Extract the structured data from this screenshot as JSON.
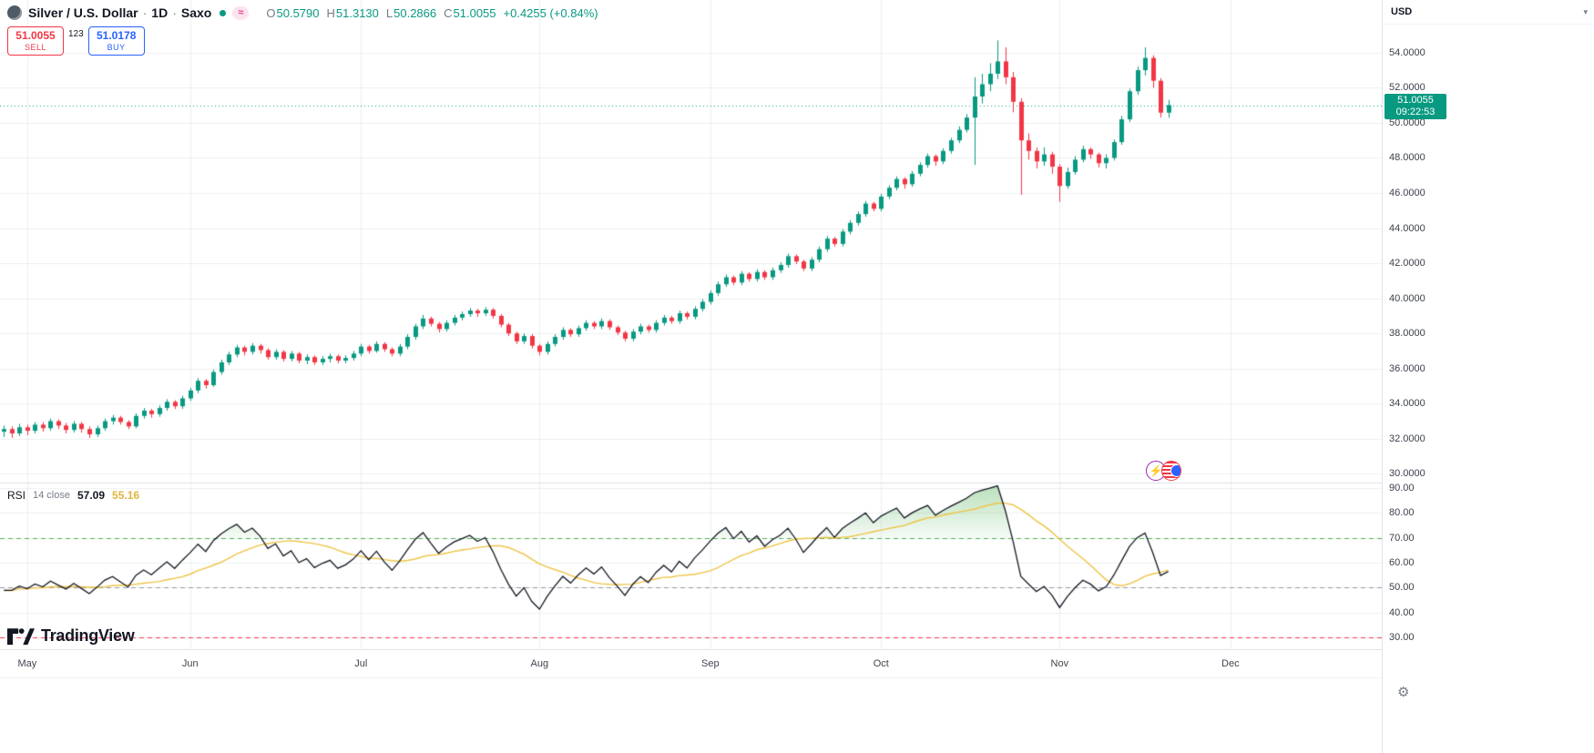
{
  "header": {
    "symbol": "Silver / U.S. Dollar",
    "sep": "·",
    "interval": "1D",
    "exchange": "Saxo",
    "delay_badge": "≈",
    "ohlc": {
      "o_label": "O",
      "o": "50.5790",
      "h_label": "H",
      "h": "51.3130",
      "l_label": "L",
      "l": "50.2866",
      "c_label": "C",
      "c": "51.0055",
      "change": "+0.4255 (+0.84%)"
    }
  },
  "order_panel": {
    "sell_price": "51.0055",
    "sell_label": "SELL",
    "spread": "123",
    "buy_price": "51.0178",
    "buy_label": "BUY"
  },
  "rsi_legend": {
    "name": "RSI",
    "params": "14 close",
    "value": "57.09",
    "ma_value": "55.16"
  },
  "watermark": {
    "brand": "TradingView"
  },
  "price_axis": {
    "currency": "USD",
    "caret": "▾",
    "labels": [
      "54.0000",
      "52.0000",
      "50.0000",
      "48.0000",
      "46.0000",
      "44.0000",
      "42.0000",
      "40.0000",
      "38.0000",
      "36.0000",
      "34.0000",
      "32.0000",
      "30.0000"
    ],
    "last_price": "51.0055",
    "countdown": "09:22:53"
  },
  "rsi_axis": {
    "labels": [
      "90.00",
      "80.00",
      "70.00",
      "60.00",
      "50.00",
      "40.00",
      "30.00"
    ]
  },
  "footer": {
    "gear_icon": "⚙",
    "lightning_icon": "⚡"
  },
  "colors": {
    "up": "#089981",
    "down": "#f23645",
    "buy_blue": "#2962ff",
    "sell_red": "#f23645",
    "rsi_line": "#131722",
    "rsi_ma": "#eec344",
    "level_70": "#4caf50",
    "level_50": "#9598a1",
    "level_30": "#f23645",
    "grid": "rgba(42,46,57,0.08)",
    "badge_bg": "#089981"
  },
  "chart_data": {
    "type": "candlestick",
    "title": "Silver / U.S. Dollar, 1D, Saxo",
    "main_pane": {
      "ylim": [
        29.5,
        57.0
      ],
      "last_price": 51.0055,
      "last_bar": {
        "open": 50.579,
        "high": 51.313,
        "low": 50.2866,
        "close": 51.0055,
        "change": 0.4255,
        "change_pct": 0.84
      },
      "candles": [
        [
          32.4,
          32.75,
          32.1,
          32.55
        ],
        [
          32.55,
          32.7,
          32.05,
          32.3
        ],
        [
          32.3,
          32.85,
          32.15,
          32.65
        ],
        [
          32.65,
          32.8,
          32.2,
          32.45
        ],
        [
          32.45,
          32.95,
          32.3,
          32.8
        ],
        [
          32.8,
          32.95,
          32.4,
          32.6
        ],
        [
          32.6,
          33.15,
          32.45,
          33.0
        ],
        [
          33.0,
          33.1,
          32.55,
          32.75
        ],
        [
          32.75,
          32.9,
          32.3,
          32.5
        ],
        [
          32.5,
          33.0,
          32.35,
          32.85
        ],
        [
          32.85,
          32.95,
          32.35,
          32.55
        ],
        [
          32.55,
          32.7,
          32.05,
          32.25
        ],
        [
          32.25,
          32.75,
          32.1,
          32.6
        ],
        [
          32.6,
          33.15,
          32.45,
          33.0
        ],
        [
          33.0,
          33.35,
          32.8,
          33.2
        ],
        [
          33.2,
          33.3,
          32.8,
          32.95
        ],
        [
          32.95,
          33.05,
          32.55,
          32.7
        ],
        [
          32.7,
          33.45,
          32.6,
          33.3
        ],
        [
          33.3,
          33.75,
          33.15,
          33.6
        ],
        [
          33.6,
          33.7,
          33.2,
          33.4
        ],
        [
          33.4,
          33.9,
          33.25,
          33.75
        ],
        [
          33.75,
          34.25,
          33.6,
          34.1
        ],
        [
          34.1,
          34.2,
          33.7,
          33.85
        ],
        [
          33.85,
          34.45,
          33.7,
          34.3
        ],
        [
          34.3,
          34.9,
          34.15,
          34.75
        ],
        [
          34.75,
          35.45,
          34.6,
          35.3
        ],
        [
          35.3,
          35.4,
          34.85,
          35.05
        ],
        [
          35.05,
          35.95,
          34.95,
          35.8
        ],
        [
          35.8,
          36.5,
          35.65,
          36.35
        ],
        [
          36.35,
          36.95,
          36.2,
          36.8
        ],
        [
          36.8,
          37.35,
          36.65,
          37.2
        ],
        [
          37.2,
          37.3,
          36.75,
          36.95
        ],
        [
          36.95,
          37.45,
          36.8,
          37.3
        ],
        [
          37.3,
          37.4,
          36.85,
          37.05
        ],
        [
          37.05,
          37.15,
          36.5,
          36.65
        ],
        [
          36.65,
          37.1,
          36.5,
          36.95
        ],
        [
          36.95,
          37.05,
          36.4,
          36.55
        ],
        [
          36.55,
          37.0,
          36.4,
          36.85
        ],
        [
          36.85,
          36.95,
          36.3,
          36.45
        ],
        [
          36.45,
          36.8,
          36.25,
          36.65
        ],
        [
          36.65,
          36.75,
          36.2,
          36.35
        ],
        [
          36.35,
          36.7,
          36.2,
          36.55
        ],
        [
          36.55,
          36.85,
          36.35,
          36.7
        ],
        [
          36.7,
          36.8,
          36.3,
          36.45
        ],
        [
          36.45,
          36.75,
          36.3,
          36.6
        ],
        [
          36.6,
          37.0,
          36.45,
          36.85
        ],
        [
          36.85,
          37.4,
          36.7,
          37.25
        ],
        [
          37.25,
          37.35,
          36.85,
          37.0
        ],
        [
          37.0,
          37.55,
          36.9,
          37.4
        ],
        [
          37.4,
          37.5,
          36.95,
          37.1
        ],
        [
          37.1,
          37.2,
          36.7,
          36.85
        ],
        [
          36.85,
          37.4,
          36.7,
          37.25
        ],
        [
          37.25,
          37.95,
          37.1,
          37.8
        ],
        [
          37.8,
          38.55,
          37.65,
          38.4
        ],
        [
          38.4,
          39.05,
          38.25,
          38.85
        ],
        [
          38.85,
          38.95,
          38.4,
          38.55
        ],
        [
          38.55,
          38.65,
          38.05,
          38.25
        ],
        [
          38.25,
          38.75,
          38.1,
          38.6
        ],
        [
          38.6,
          39.05,
          38.45,
          38.9
        ],
        [
          38.9,
          39.25,
          38.75,
          39.1
        ],
        [
          39.1,
          39.45,
          38.95,
          39.3
        ],
        [
          39.3,
          39.4,
          38.95,
          39.15
        ],
        [
          39.15,
          39.5,
          39.0,
          39.35
        ],
        [
          39.35,
          39.45,
          38.85,
          39.0
        ],
        [
          39.0,
          39.1,
          38.35,
          38.5
        ],
        [
          38.5,
          38.6,
          37.85,
          38.0
        ],
        [
          38.0,
          38.1,
          37.4,
          37.55
        ],
        [
          37.55,
          38.0,
          37.4,
          37.85
        ],
        [
          37.85,
          37.95,
          37.15,
          37.3
        ],
        [
          37.3,
          37.4,
          36.75,
          36.95
        ],
        [
          36.95,
          37.55,
          36.8,
          37.4
        ],
        [
          37.4,
          37.95,
          37.25,
          37.8
        ],
        [
          37.8,
          38.35,
          37.65,
          38.2
        ],
        [
          38.2,
          38.3,
          37.8,
          37.95
        ],
        [
          37.95,
          38.45,
          37.8,
          38.3
        ],
        [
          38.3,
          38.75,
          38.15,
          38.6
        ],
        [
          38.6,
          38.7,
          38.25,
          38.4
        ],
        [
          38.4,
          38.85,
          38.25,
          38.7
        ],
        [
          38.7,
          38.8,
          38.2,
          38.35
        ],
        [
          38.35,
          38.45,
          37.9,
          38.05
        ],
        [
          38.05,
          38.15,
          37.55,
          37.7
        ],
        [
          37.7,
          38.25,
          37.55,
          38.1
        ],
        [
          38.1,
          38.55,
          37.95,
          38.4
        ],
        [
          38.4,
          38.5,
          38.05,
          38.2
        ],
        [
          38.2,
          38.75,
          38.05,
          38.6
        ],
        [
          38.6,
          39.05,
          38.45,
          38.9
        ],
        [
          38.9,
          39.0,
          38.55,
          38.7
        ],
        [
          38.7,
          39.3,
          38.55,
          39.15
        ],
        [
          39.15,
          39.25,
          38.8,
          38.95
        ],
        [
          38.95,
          39.55,
          38.8,
          39.4
        ],
        [
          39.4,
          39.95,
          39.25,
          39.8
        ],
        [
          39.8,
          40.45,
          39.65,
          40.3
        ],
        [
          40.3,
          40.95,
          40.15,
          40.8
        ],
        [
          40.8,
          41.35,
          40.65,
          41.2
        ],
        [
          41.2,
          41.3,
          40.75,
          40.9
        ],
        [
          40.9,
          41.55,
          40.75,
          41.4
        ],
        [
          41.4,
          41.5,
          40.95,
          41.1
        ],
        [
          41.1,
          41.65,
          40.95,
          41.5
        ],
        [
          41.5,
          41.6,
          41.05,
          41.2
        ],
        [
          41.2,
          41.75,
          41.05,
          41.6
        ],
        [
          41.6,
          42.05,
          41.45,
          41.9
        ],
        [
          41.9,
          42.55,
          41.75,
          42.4
        ],
        [
          42.4,
          42.5,
          41.95,
          42.1
        ],
        [
          42.1,
          42.2,
          41.55,
          41.7
        ],
        [
          41.7,
          42.35,
          41.55,
          42.2
        ],
        [
          42.2,
          42.95,
          42.05,
          42.8
        ],
        [
          42.8,
          43.55,
          42.65,
          43.4
        ],
        [
          43.4,
          43.5,
          42.95,
          43.1
        ],
        [
          43.1,
          43.95,
          42.95,
          43.8
        ],
        [
          43.8,
          44.45,
          43.65,
          44.3
        ],
        [
          44.3,
          44.95,
          44.15,
          44.8
        ],
        [
          44.8,
          45.55,
          44.65,
          45.4
        ],
        [
          45.4,
          45.5,
          44.95,
          45.1
        ],
        [
          45.1,
          45.95,
          44.95,
          45.8
        ],
        [
          45.8,
          46.45,
          45.65,
          46.3
        ],
        [
          46.3,
          46.95,
          46.15,
          46.8
        ],
        [
          46.8,
          46.9,
          46.25,
          46.5
        ],
        [
          46.5,
          47.25,
          46.35,
          47.1
        ],
        [
          47.1,
          47.75,
          46.95,
          47.6
        ],
        [
          47.6,
          48.25,
          47.45,
          48.1
        ],
        [
          48.1,
          48.2,
          47.55,
          47.8
        ],
        [
          47.8,
          48.55,
          47.65,
          48.4
        ],
        [
          48.4,
          49.15,
          48.25,
          49.0
        ],
        [
          49.0,
          49.8,
          48.85,
          49.6
        ],
        [
          49.6,
          50.5,
          49.45,
          50.3
        ],
        [
          50.3,
          52.6,
          47.6,
          51.5
        ],
        [
          51.5,
          52.8,
          51.1,
          52.2
        ],
        [
          52.2,
          53.4,
          51.8,
          52.8
        ],
        [
          52.8,
          54.7,
          52.5,
          53.5
        ],
        [
          53.5,
          54.3,
          52.2,
          52.6
        ],
        [
          52.6,
          52.9,
          50.6,
          51.2
        ],
        [
          51.2,
          51.4,
          45.9,
          49.0
        ],
        [
          49.0,
          49.4,
          47.9,
          48.4
        ],
        [
          48.4,
          48.6,
          47.4,
          47.8
        ],
        [
          47.8,
          48.6,
          47.55,
          48.2
        ],
        [
          48.2,
          48.35,
          47.1,
          47.5
        ],
        [
          47.5,
          47.65,
          45.5,
          46.4
        ],
        [
          46.4,
          47.45,
          46.25,
          47.2
        ],
        [
          47.2,
          48.1,
          47.05,
          47.9
        ],
        [
          47.9,
          48.7,
          47.75,
          48.5
        ],
        [
          48.5,
          48.6,
          47.95,
          48.2
        ],
        [
          48.2,
          48.3,
          47.45,
          47.7
        ],
        [
          47.7,
          48.2,
          47.4,
          48.0
        ],
        [
          48.0,
          49.05,
          47.85,
          48.9
        ],
        [
          48.9,
          50.4,
          48.75,
          50.2
        ],
        [
          50.2,
          51.95,
          50.05,
          51.8
        ],
        [
          51.8,
          53.2,
          51.6,
          53.0
        ],
        [
          53.0,
          54.3,
          52.7,
          53.7
        ],
        [
          53.7,
          53.85,
          52.0,
          52.4
        ],
        [
          52.4,
          52.55,
          50.3,
          50.58
        ],
        [
          50.58,
          51.31,
          50.29,
          51.01
        ]
      ]
    },
    "rsi_pane": {
      "type": "line",
      "indicator": "RSI",
      "period": 14,
      "source": "close",
      "ma_period": 14,
      "ylim": [
        25.2,
        91.8
      ],
      "levels": [
        {
          "value": 70,
          "color": "#4caf50"
        },
        {
          "value": 50,
          "color": "#9598a1"
        },
        {
          "value": 30,
          "color": "#f23645"
        }
      ],
      "last_values": {
        "rsi": 57.09,
        "ma": 55.16
      }
    },
    "x_axis": {
      "slots": 178,
      "month_labels": [
        "May",
        "Jun",
        "Jul",
        "Aug",
        "Sep",
        "Oct",
        "Nov",
        "Dec"
      ],
      "month_indices": [
        3,
        24,
        46,
        69,
        91,
        113,
        136,
        158
      ]
    }
  }
}
